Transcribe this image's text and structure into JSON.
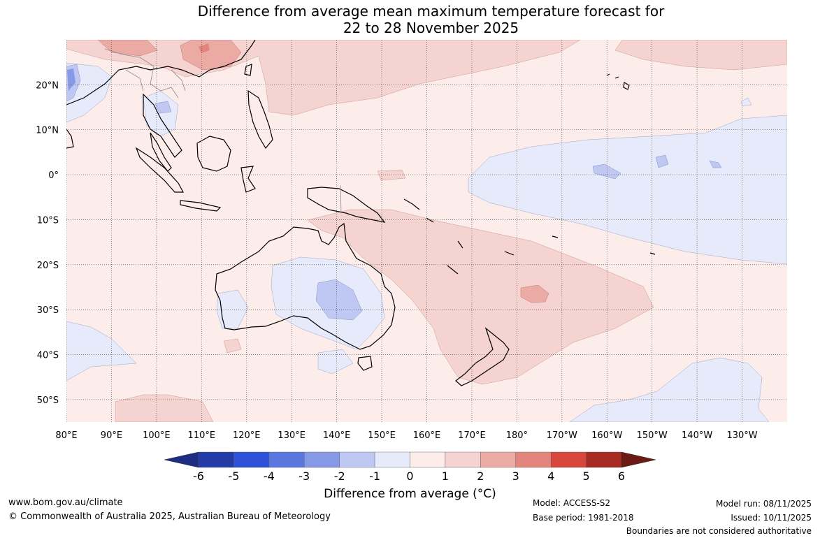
{
  "title": {
    "line1": "Difference from average mean maximum temperature forecast for",
    "line2": "22 to 28 November 2025"
  },
  "axes": {
    "lon_ticks": [
      "80°E",
      "90°E",
      "100°E",
      "110°E",
      "120°E",
      "130°E",
      "140°E",
      "150°E",
      "160°E",
      "170°E",
      "180°",
      "170°W",
      "160°W",
      "150°W",
      "140°W",
      "130°W"
    ],
    "lat_ticks": [
      "20°N",
      "10°N",
      "0°",
      "10°S",
      "20°S",
      "30°S",
      "40°S",
      "50°S"
    ],
    "lon_range": [
      80,
      240
    ],
    "lat_range": [
      -55,
      30
    ],
    "grid": "dotted"
  },
  "colorbar": {
    "ticks": [
      "-6",
      "-5",
      "-4",
      "-3",
      "-2",
      "-1",
      "0",
      "1",
      "2",
      "3",
      "4",
      "5",
      "6"
    ],
    "colors": [
      "#233ba6",
      "#2f51d9",
      "#5a77e0",
      "#8599e6",
      "#bfc8f2",
      "#e6eafa",
      "#fcecea",
      "#f5d3d1",
      "#ecaaa5",
      "#e4857d",
      "#d8473b",
      "#a62a22"
    ],
    "under_color": "#1d2d84",
    "over_color": "#6b1a14",
    "label": "Difference from average (°C)"
  },
  "footer": {
    "site": "www.bom.gov.au/climate",
    "copyright": "© Commonwealth of Australia 2025, Australian Bureau of Meteorology",
    "model": "Model: ACCESS-S2",
    "base_period": "Base period: 1981-2018",
    "model_run": "Model run: 08/11/2025",
    "issued": "Issued: 10/11/2025",
    "disclaimer": "Boundaries are not considered authoritative"
  }
}
